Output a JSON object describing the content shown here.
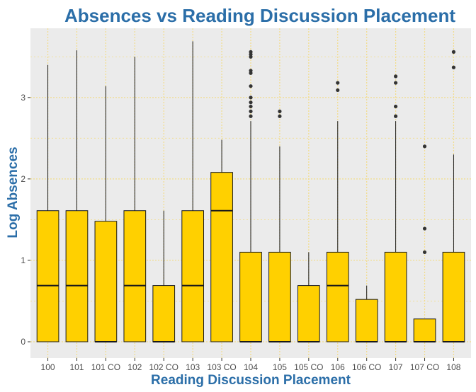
{
  "chart_data": {
    "type": "box",
    "title": "Absences vs Reading Discussion Placement",
    "xlabel": "Reading Discussion Placement",
    "ylabel": "Log Absences",
    "ylim": [
      -0.2,
      3.85
    ],
    "y_ticks": [
      0,
      1,
      2,
      3
    ],
    "grid": true,
    "colors": {
      "title": "#2b6ea8",
      "axis_title": "#2b6ea8",
      "box_fill": "#ffd000",
      "box_stroke": "#1a1a1a",
      "panel_bg": "#ebebeb",
      "grid": "#f2dc8a",
      "outlier": "#333333"
    },
    "categories": [
      "100",
      "101",
      "101 CO",
      "102",
      "102 CO",
      "103",
      "103 CO",
      "104",
      "105",
      "105 CO",
      "106",
      "106 CO",
      "107",
      "107 CO",
      "108"
    ],
    "boxes": [
      {
        "category": "100",
        "whisker_low": 0,
        "q1": 0,
        "median": 0.69,
        "q3": 1.61,
        "whisker_high": 3.4,
        "outliers": []
      },
      {
        "category": "101",
        "whisker_low": 0,
        "q1": 0,
        "median": 0.69,
        "q3": 1.61,
        "whisker_high": 3.58,
        "outliers": []
      },
      {
        "category": "101 CO",
        "whisker_low": 0,
        "q1": 0,
        "median": 0,
        "q3": 1.48,
        "whisker_high": 3.14,
        "outliers": []
      },
      {
        "category": "102",
        "whisker_low": 0,
        "q1": 0,
        "median": 0.69,
        "q3": 1.61,
        "whisker_high": 3.5,
        "outliers": []
      },
      {
        "category": "102 CO",
        "whisker_low": 0,
        "q1": 0,
        "median": 0,
        "q3": 0.69,
        "whisker_high": 1.61,
        "outliers": []
      },
      {
        "category": "103",
        "whisker_low": 0,
        "q1": 0,
        "median": 0.69,
        "q3": 1.61,
        "whisker_high": 3.69,
        "outliers": []
      },
      {
        "category": "103 CO",
        "whisker_low": 0,
        "q1": 0,
        "median": 1.61,
        "q3": 2.08,
        "whisker_high": 2.48,
        "outliers": []
      },
      {
        "category": "104",
        "whisker_low": 0,
        "q1": 0,
        "median": 0,
        "q3": 1.1,
        "whisker_high": 2.71,
        "outliers": [
          2.77,
          2.83,
          2.89,
          2.94,
          3.0,
          3.14,
          3.3,
          3.33,
          3.5,
          3.53,
          3.56
        ]
      },
      {
        "category": "105",
        "whisker_low": 0,
        "q1": 0,
        "median": 0,
        "q3": 1.1,
        "whisker_high": 2.4,
        "outliers": [
          2.77,
          2.83
        ]
      },
      {
        "category": "105 CO",
        "whisker_low": 0,
        "q1": 0,
        "median": 0,
        "q3": 0.69,
        "whisker_high": 1.1,
        "outliers": []
      },
      {
        "category": "106",
        "whisker_low": 0,
        "q1": 0,
        "median": 0.69,
        "q3": 1.1,
        "whisker_high": 2.71,
        "outliers": [
          3.09,
          3.18
        ]
      },
      {
        "category": "106 CO",
        "whisker_low": 0,
        "q1": 0,
        "median": 0,
        "q3": 0.52,
        "whisker_high": 0.69,
        "outliers": []
      },
      {
        "category": "107",
        "whisker_low": 0,
        "q1": 0,
        "median": 0,
        "q3": 1.1,
        "whisker_high": 2.71,
        "outliers": [
          2.77,
          2.89,
          3.18,
          3.26
        ]
      },
      {
        "category": "107 CO",
        "whisker_low": 0,
        "q1": 0,
        "median": 0,
        "q3": 0.28,
        "whisker_high": 0.28,
        "outliers": [
          1.1,
          1.39,
          2.4
        ]
      },
      {
        "category": "108",
        "whisker_low": 0,
        "q1": 0,
        "median": 0,
        "q3": 1.1,
        "whisker_high": 2.3,
        "outliers": [
          3.37,
          3.56
        ]
      }
    ]
  }
}
